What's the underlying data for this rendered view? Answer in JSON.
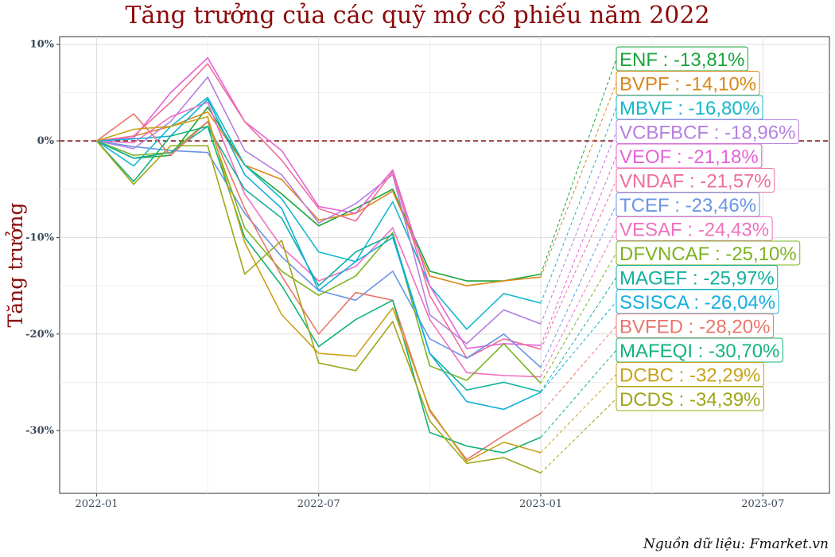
{
  "title": "Tăng trưởng của các quỹ mở cổ phiếu năm 2022",
  "source": "Nguồn dữ liệu: Fmarket.vn",
  "chart_data": {
    "type": "line",
    "ylabel": "Tăng trưởng",
    "xlabel": "",
    "x": [
      "2022-01",
      "2022-02",
      "2022-03",
      "2022-04",
      "2022-05",
      "2022-06",
      "2022-07",
      "2022-08",
      "2022-09",
      "2022-10",
      "2022-11",
      "2022-12",
      "2023-01"
    ],
    "x_ticks": [
      "2022-01",
      "2022-07",
      "2023-01",
      "2023-07"
    ],
    "x_tick_pos": [
      0,
      6,
      12,
      18
    ],
    "xlim": [
      -1,
      19.8
    ],
    "y_ticks": [
      10,
      0,
      -10,
      -20,
      -30
    ],
    "y_tick_labels": [
      "10%",
      "0%",
      "-10%",
      "-20%",
      "-30%"
    ],
    "ylim": [
      -36.5,
      10.8
    ],
    "grid": true,
    "reference_line": 0,
    "series": [
      {
        "name": "ENF",
        "label": "ENF : -13,81%",
        "color": "#19a53c",
        "values": [
          0,
          -1.8,
          -1.5,
          3.5,
          -2.5,
          -5.5,
          -8.8,
          -7,
          -5,
          -13.5,
          -14.5,
          -14.5,
          -13.81
        ]
      },
      {
        "name": "BVPF",
        "label": "BVPF : -14,10%",
        "color": "#d9891a",
        "values": [
          0,
          0.5,
          1.5,
          3,
          -2.5,
          -4,
          -8.2,
          -7.5,
          -5.2,
          -14,
          -15,
          -14.5,
          -14.1
        ]
      },
      {
        "name": "MBVF",
        "label": "MBVF : -16,80%",
        "color": "#14b9cc",
        "values": [
          0,
          -2.6,
          1.5,
          4.5,
          -2.5,
          -6,
          -11.5,
          -12.5,
          -6.3,
          -15,
          -19.5,
          -15.8,
          -16.8
        ]
      },
      {
        "name": "VCBFBCF",
        "label": "VCBFBCF : -18,96%",
        "color": "#b57fe0",
        "values": [
          0,
          -0.8,
          2,
          6.6,
          -1,
          -3.5,
          -8.5,
          -6.5,
          -3.5,
          -18,
          -21,
          -17.5,
          -18.96
        ]
      },
      {
        "name": "VEOF",
        "label": "VEOF : -21,18%",
        "color": "#e562d8",
        "values": [
          0,
          0.3,
          5,
          8.6,
          2,
          -1,
          -6.8,
          -7.5,
          -3,
          -15,
          -21.5,
          -21,
          -21.18
        ]
      },
      {
        "name": "VNDAF",
        "label": "VNDAF : -21,57%",
        "color": "#ef6f99",
        "values": [
          0,
          0.5,
          4,
          8,
          2,
          -2,
          -7,
          -8.3,
          -3.2,
          -16,
          -22.5,
          -20.5,
          -21.57
        ]
      },
      {
        "name": "TCEF",
        "label": "TCEF : -23,46%",
        "color": "#6a95e6",
        "values": [
          0,
          -0.6,
          -1,
          -1.2,
          -7.5,
          -12,
          -15.5,
          -16.5,
          -13.5,
          -20.5,
          -22.5,
          -20,
          -23.46
        ]
      },
      {
        "name": "VESAF",
        "label": "VESAF : -24,43%",
        "color": "#f070c0",
        "values": [
          0,
          -0.2,
          2.5,
          4,
          -5.5,
          -11,
          -14.5,
          -13,
          -9,
          -18.5,
          -24,
          -24.3,
          -24.43
        ]
      },
      {
        "name": "DFVNCAF",
        "label": "DFVNCAF : -25,10%",
        "color": "#7cb321",
        "values": [
          0,
          -1.5,
          -1.2,
          2,
          -9,
          -13.5,
          -16,
          -14,
          -9.5,
          -23.3,
          -24.8,
          -21,
          -25.1
        ]
      },
      {
        "name": "MAGEF",
        "label": "MAGEF : -25,97%",
        "color": "#14b09e",
        "values": [
          0,
          -1.8,
          -1.2,
          1.5,
          -5,
          -8,
          -15,
          -11.5,
          -9.7,
          -22,
          -25.8,
          -25,
          -25.97
        ]
      },
      {
        "name": "SSISCA",
        "label": "SSISCA : -26,04%",
        "color": "#12aedd",
        "values": [
          0,
          0.2,
          0.5,
          4.3,
          -3.5,
          -7,
          -15.5,
          -12.5,
          -10,
          -22,
          -27,
          -27.8,
          -26.04
        ]
      },
      {
        "name": "BVFED",
        "label": "BVFED : -28,20%",
        "color": "#e9776c",
        "values": [
          0,
          2.8,
          -1.5,
          2,
          -7,
          -14,
          -20,
          -15.7,
          -16.5,
          -28,
          -33,
          -30.5,
          -28.2
        ]
      },
      {
        "name": "MAFEQI",
        "label": "MAFEQI : -30,70%",
        "color": "#14b37a",
        "values": [
          0,
          -4.2,
          0.5,
          1.5,
          -10,
          -15,
          -21.3,
          -18.5,
          -16.5,
          -30.2,
          -31.6,
          -32.3,
          -30.7
        ]
      },
      {
        "name": "DCBC",
        "label": "DCBC : -32,29%",
        "color": "#c9a21a",
        "values": [
          0,
          1.2,
          1.5,
          2.5,
          -10.5,
          -18,
          -22,
          -22.3,
          -17.3,
          -27.8,
          -33.2,
          -31.2,
          -32.29
        ]
      },
      {
        "name": "DCDS",
        "label": "DCDS : -34,39%",
        "color": "#9ea619",
        "values": [
          0,
          -4.5,
          -0.5,
          -0.5,
          -13.8,
          -10.3,
          -23,
          -23.8,
          -18.7,
          -29,
          -33.4,
          -32.8,
          -34.39
        ]
      }
    ]
  }
}
